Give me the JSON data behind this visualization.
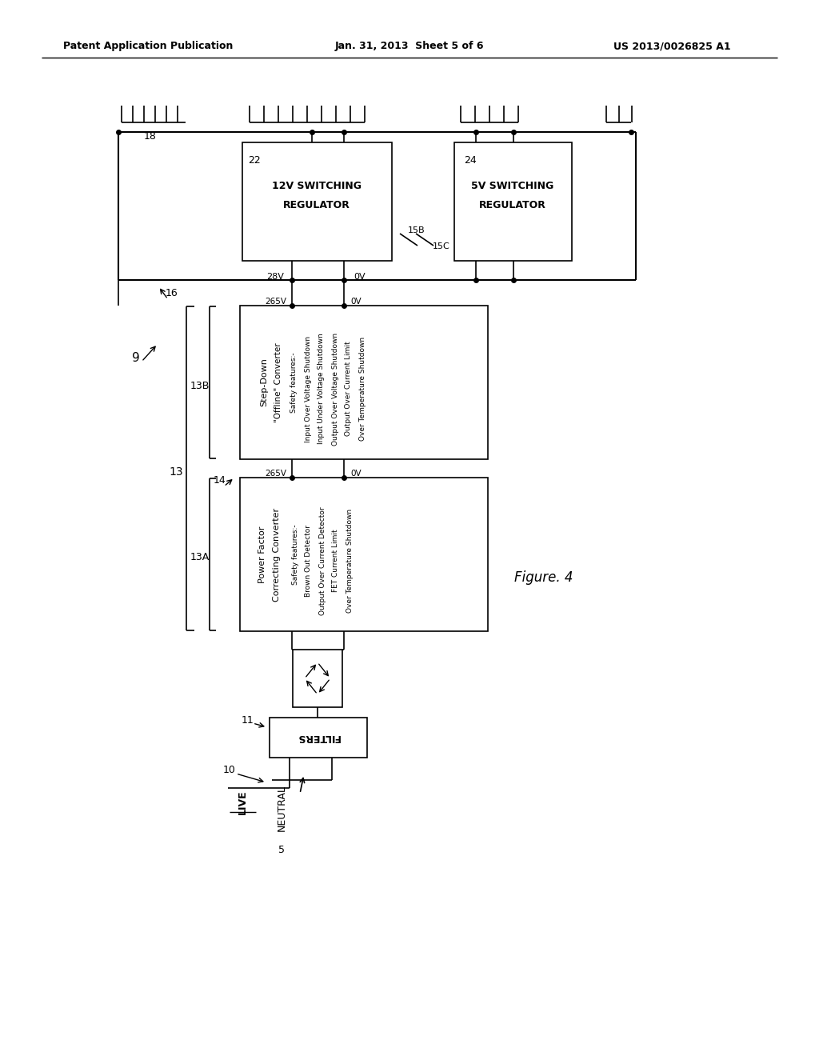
{
  "header_left": "Patent Application Publication",
  "header_center": "Jan. 31, 2013  Sheet 5 of 6",
  "header_right": "US 2013/0026825 A1",
  "figure_label": "Figure. 4",
  "bg_color": "#ffffff",
  "lc": "#000000",
  "box12v_text": [
    "12V SWITCHING",
    "REGULATOR"
  ],
  "box5v_text": [
    "5V SWITCHING",
    "REGULATOR"
  ],
  "stepdown_title": [
    "Step-Down",
    "\"Offline\" Converter"
  ],
  "stepdown_features": [
    "Safety features:-",
    "Input Over Voltage Shutdown",
    "Input Under Voltage Shutdown",
    "Output Over Voltage Shutdown",
    "Output Over Current Limit",
    "Over Temperature Shutdown"
  ],
  "pfc_title": [
    "Power Factor",
    "Correcting Converter"
  ],
  "pfc_features": [
    "Safety features:-",
    "Brown Out Detector",
    "Output Over Current Detector",
    "FET Current Limit",
    "Over Temperature Shutdown"
  ],
  "filters_label": "FILTERS",
  "live_label": "LIVE",
  "neutral_label": "NEUTRAL",
  "label_9": "9",
  "label_10": "10",
  "label_11": "11",
  "label_13": "13",
  "label_13a": "13A",
  "label_13b": "13B",
  "label_14": "14",
  "label_15b": "15B",
  "label_15c": "15C",
  "label_16": "16",
  "label_18": "18",
  "label_22": "22",
  "label_24": "24",
  "label_5": "5",
  "label_28v": "28V",
  "label_0v": "0V",
  "label_265v": "265V"
}
